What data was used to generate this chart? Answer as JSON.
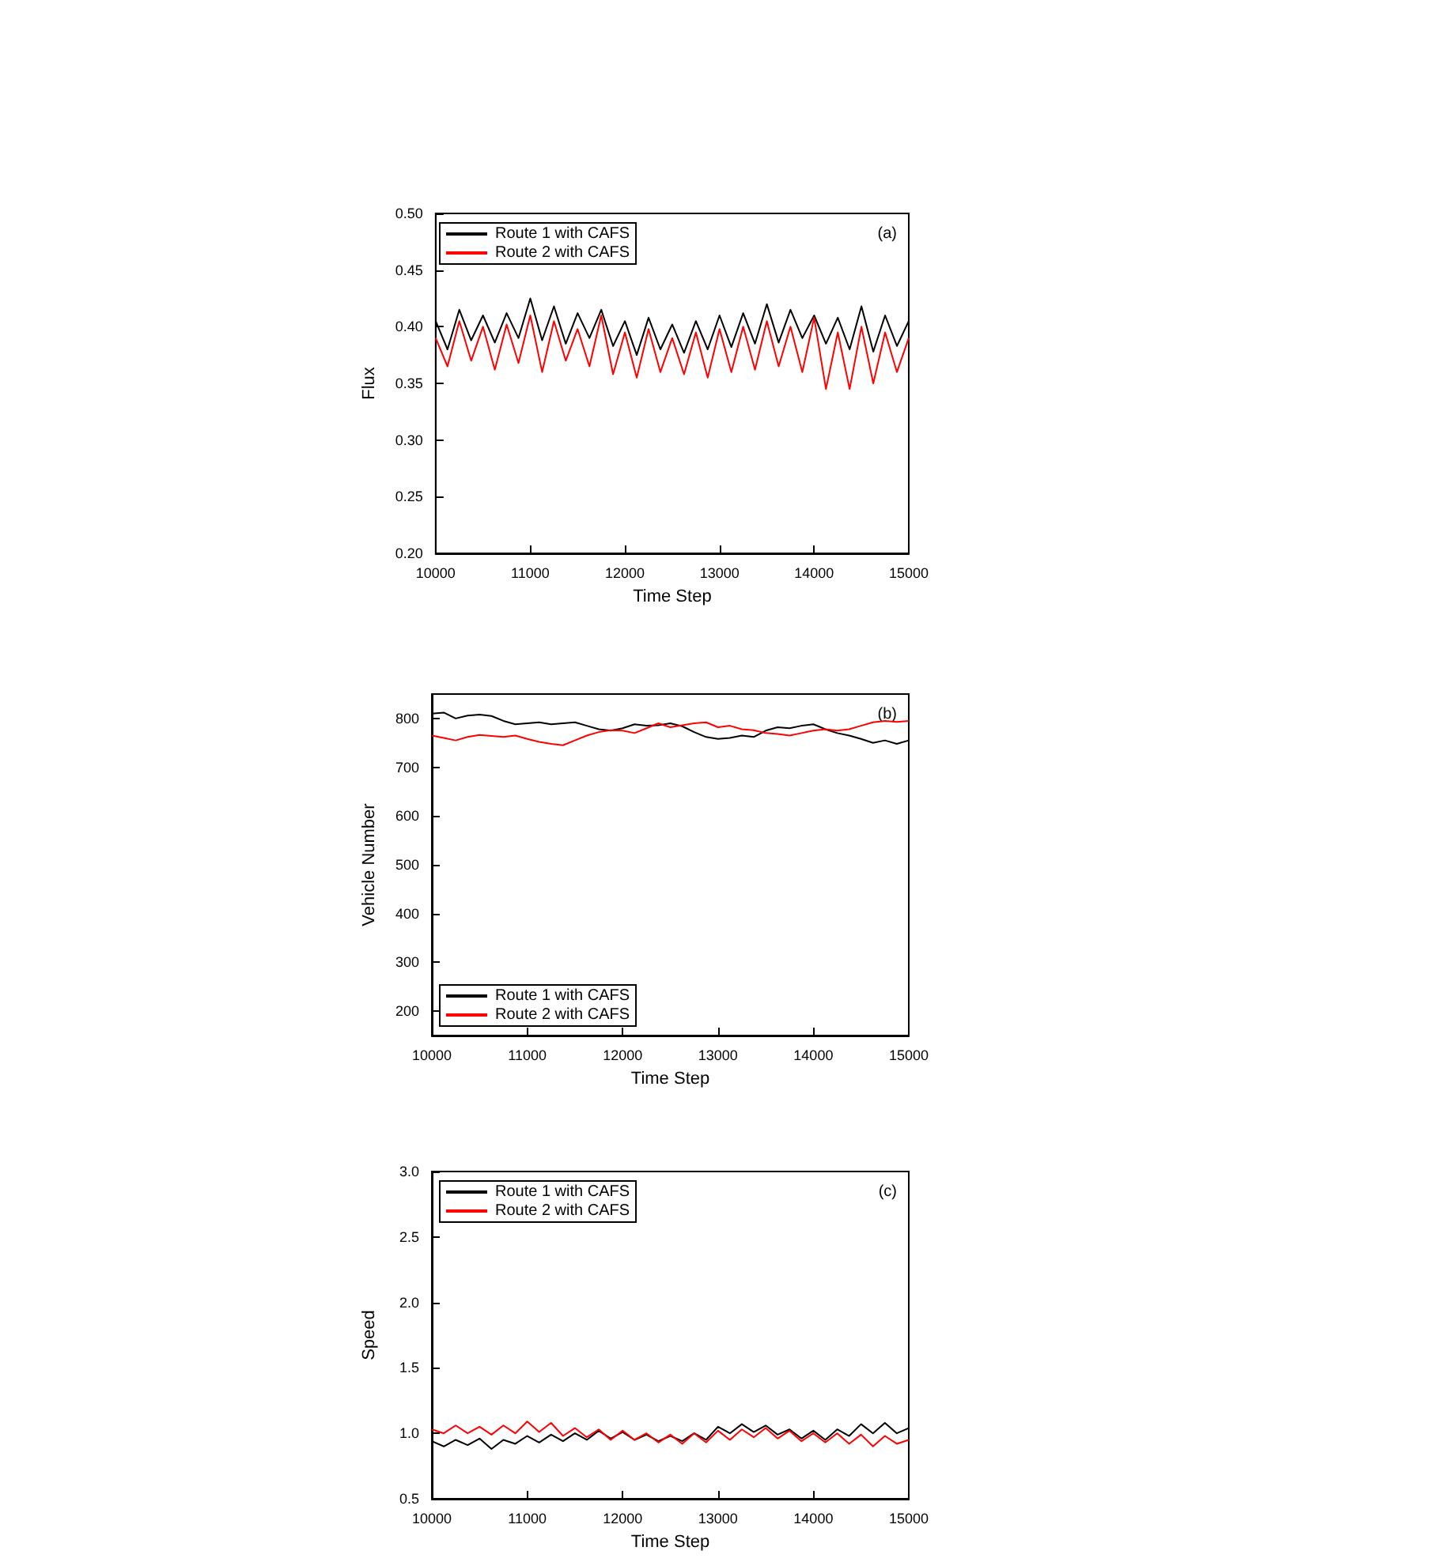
{
  "chart_data": [
    {
      "type": "line",
      "xlabel": "Time Step",
      "ylabel": "Flux",
      "annotations": [
        "(a)"
      ],
      "legend": "top left",
      "grid": false,
      "marker": "none",
      "line_style": "solid",
      "xlim": [
        10000,
        15000
      ],
      "xticks": [
        10000,
        11000,
        12000,
        13000,
        14000,
        15000
      ],
      "ylim": [
        0.2,
        0.5
      ],
      "yticks": [
        {
          "value": 0.2,
          "label": "0.20"
        },
        {
          "value": 0.25,
          "label": "0.25"
        },
        {
          "value": 0.3,
          "label": "0.30"
        },
        {
          "value": 0.35,
          "label": "0.35"
        },
        {
          "value": 0.4,
          "label": "0.40"
        },
        {
          "value": 0.45,
          "label": "0.45"
        },
        {
          "value": 0.5,
          "label": "0.50"
        }
      ],
      "x": [
        10000,
        10125,
        10250,
        10375,
        10500,
        10625,
        10750,
        10875,
        11000,
        11125,
        11250,
        11375,
        11500,
        11625,
        11750,
        11875,
        12000,
        12125,
        12250,
        12375,
        12500,
        12625,
        12750,
        12875,
        13000,
        13125,
        13250,
        13375,
        13500,
        13625,
        13750,
        13875,
        14000,
        14125,
        14250,
        14375,
        14500,
        14625,
        14750,
        14875,
        15000
      ],
      "series": [
        {
          "name": "Route 1 with CAFS",
          "color": "#000000",
          "values": [
            0.405,
            0.38,
            0.415,
            0.388,
            0.41,
            0.386,
            0.412,
            0.39,
            0.425,
            0.388,
            0.418,
            0.385,
            0.412,
            0.39,
            0.415,
            0.383,
            0.405,
            0.375,
            0.408,
            0.38,
            0.402,
            0.377,
            0.405,
            0.38,
            0.41,
            0.382,
            0.412,
            0.385,
            0.42,
            0.386,
            0.415,
            0.39,
            0.41,
            0.385,
            0.408,
            0.38,
            0.418,
            0.378,
            0.41,
            0.383,
            0.405
          ]
        },
        {
          "name": "Route 2 with CAFS",
          "color": "#ff0000",
          "values": [
            0.39,
            0.365,
            0.405,
            0.37,
            0.4,
            0.362,
            0.402,
            0.368,
            0.41,
            0.36,
            0.405,
            0.37,
            0.398,
            0.365,
            0.41,
            0.358,
            0.395,
            0.355,
            0.398,
            0.36,
            0.39,
            0.358,
            0.395,
            0.355,
            0.398,
            0.36,
            0.4,
            0.362,
            0.405,
            0.365,
            0.4,
            0.36,
            0.408,
            0.345,
            0.395,
            0.345,
            0.4,
            0.35,
            0.395,
            0.36,
            0.39
          ]
        }
      ]
    },
    {
      "type": "line",
      "xlabel": "Time Step",
      "ylabel": "Vehicle Number",
      "annotations": [
        "(b)"
      ],
      "legend": "bottom left",
      "grid": false,
      "marker": "none",
      "line_style": "solid",
      "xlim": [
        10000,
        15000
      ],
      "xticks": [
        10000,
        11000,
        12000,
        13000,
        14000,
        15000
      ],
      "ylim": [
        150,
        850
      ],
      "yticks": [
        200,
        300,
        400,
        500,
        600,
        700,
        800
      ],
      "x": [
        10000,
        10125,
        10250,
        10375,
        10500,
        10625,
        10750,
        10875,
        11000,
        11125,
        11250,
        11375,
        11500,
        11625,
        11750,
        11875,
        12000,
        12125,
        12250,
        12375,
        12500,
        12625,
        12750,
        12875,
        13000,
        13125,
        13250,
        13375,
        13500,
        13625,
        13750,
        13875,
        14000,
        14125,
        14250,
        14375,
        14500,
        14625,
        14750,
        14875,
        15000
      ],
      "series": [
        {
          "name": "Route 1 with CAFS",
          "color": "#000000",
          "values": [
            810,
            812,
            800,
            806,
            808,
            805,
            795,
            788,
            790,
            792,
            788,
            790,
            792,
            785,
            778,
            775,
            780,
            788,
            785,
            786,
            790,
            784,
            772,
            762,
            758,
            760,
            765,
            762,
            775,
            782,
            780,
            785,
            788,
            778,
            770,
            765,
            758,
            750,
            755,
            748,
            755
          ]
        },
        {
          "name": "Route 2 with CAFS",
          "color": "#ff0000",
          "values": [
            765,
            760,
            755,
            762,
            766,
            764,
            762,
            765,
            758,
            752,
            748,
            745,
            755,
            765,
            772,
            776,
            775,
            770,
            780,
            790,
            782,
            786,
            790,
            792,
            782,
            785,
            778,
            776,
            770,
            768,
            765,
            770,
            775,
            778,
            775,
            778,
            785,
            792,
            795,
            793,
            795
          ]
        }
      ]
    },
    {
      "type": "line",
      "xlabel": "Time Step",
      "ylabel": "Speed",
      "annotations": [
        "(c)"
      ],
      "legend": "top left",
      "grid": false,
      "marker": "none",
      "line_style": "solid",
      "xlim": [
        10000,
        15000
      ],
      "xticks": [
        10000,
        11000,
        12000,
        13000,
        14000,
        15000
      ],
      "ylim": [
        0.5,
        3.0
      ],
      "yticks": [
        {
          "value": 0.5,
          "label": "0.5"
        },
        {
          "value": 1.0,
          "label": "1.0"
        },
        {
          "value": 1.5,
          "label": "1.5"
        },
        {
          "value": 2.0,
          "label": "2.0"
        },
        {
          "value": 2.5,
          "label": "2.5"
        },
        {
          "value": 3.0,
          "label": "3.0"
        }
      ],
      "x": [
        10000,
        10125,
        10250,
        10375,
        10500,
        10625,
        10750,
        10875,
        11000,
        11125,
        11250,
        11375,
        11500,
        11625,
        11750,
        11875,
        12000,
        12125,
        12250,
        12375,
        12500,
        12625,
        12750,
        12875,
        13000,
        13125,
        13250,
        13375,
        13500,
        13625,
        13750,
        13875,
        14000,
        14125,
        14250,
        14375,
        14500,
        14625,
        14750,
        14875,
        15000
      ],
      "series": [
        {
          "name": "Route 1 with CAFS",
          "color": "#000000",
          "values": [
            0.94,
            0.9,
            0.95,
            0.91,
            0.96,
            0.88,
            0.95,
            0.92,
            0.98,
            0.93,
            0.99,
            0.94,
            1.0,
            0.95,
            1.02,
            0.96,
            1.01,
            0.95,
            0.99,
            0.94,
            0.98,
            0.94,
            1.0,
            0.95,
            1.05,
            1.0,
            1.07,
            1.01,
            1.06,
            0.99,
            1.03,
            0.96,
            1.02,
            0.95,
            1.03,
            0.98,
            1.07,
            1.0,
            1.08,
            1.0,
            1.04
          ]
        },
        {
          "name": "Route 2 with CAFS",
          "color": "#ff0000",
          "values": [
            1.03,
            1.0,
            1.06,
            1.0,
            1.05,
            0.99,
            1.06,
            1.0,
            1.09,
            1.01,
            1.08,
            0.98,
            1.04,
            0.97,
            1.03,
            0.95,
            1.02,
            0.95,
            1.0,
            0.93,
            0.99,
            0.92,
            1.0,
            0.93,
            1.02,
            0.95,
            1.03,
            0.97,
            1.04,
            0.96,
            1.02,
            0.94,
            1.0,
            0.93,
            1.0,
            0.92,
            0.99,
            0.9,
            0.98,
            0.92,
            0.95
          ]
        }
      ]
    }
  ]
}
